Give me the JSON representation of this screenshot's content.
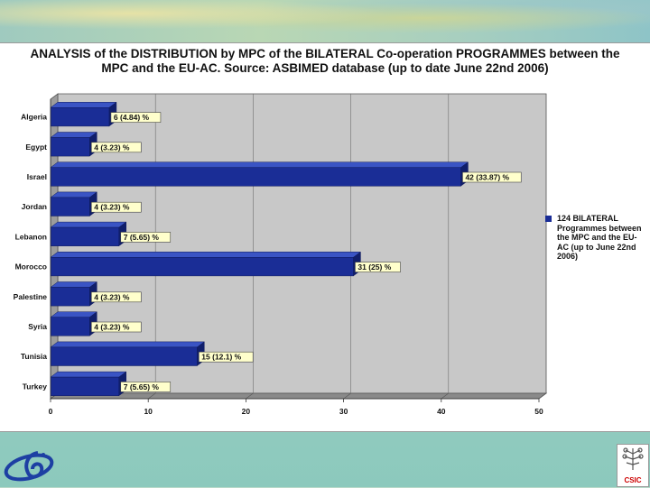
{
  "title": {
    "line1": "ANALYSIS of the DISTRIBUTION by MPC of the BILATERAL Co-operation PROGRAMMES between the",
    "line2": "MPC and the EU-AC. Source: ASBIMED database (up to date June 22nd 2006)"
  },
  "legend": {
    "label": "124 BILATERAL Programmes between the MPC and the EU-AC (up to June 22nd 2006)",
    "color": "#1a2d96"
  },
  "logos": {
    "right_text": "CSIC"
  },
  "chart_data": {
    "type": "bar",
    "orientation": "horizontal",
    "title": "ANALYSIS of the DISTRIBUTION by MPC of the BILATERAL Co-operation PROGRAMMES between the MPC and the EU-AC. Source: ASBIMED database (up to date June 22nd 2006)",
    "categories": [
      "Algeria",
      "Egypt",
      "Israel",
      "Jordan",
      "Lebanon",
      "Morocco",
      "Palestine",
      "Syria",
      "Tunisia",
      "Turkey"
    ],
    "series": [
      {
        "name": "124 BILATERAL Programmes between the MPC and the EU-AC (up to June 22nd 2006)",
        "values": [
          6,
          4,
          42,
          4,
          7,
          31,
          4,
          4,
          15,
          7
        ],
        "labels": [
          "6 (4.84) %",
          "4 (3.23) %",
          "42 (33.87) %",
          "4 (3.23) %",
          "7 (5.65) %",
          "31 (25) %",
          "4 (3.23) %",
          "4 (3.23) %",
          "15 (12.1) %",
          "7 (5.65) %"
        ]
      }
    ],
    "xlim": [
      0,
      50
    ],
    "xticks": [
      0,
      10,
      20,
      30,
      40,
      50
    ],
    "grid": true,
    "legend_position": "right",
    "bar_color": "#1a2d96",
    "plot_bg": "#c8c8c8"
  }
}
